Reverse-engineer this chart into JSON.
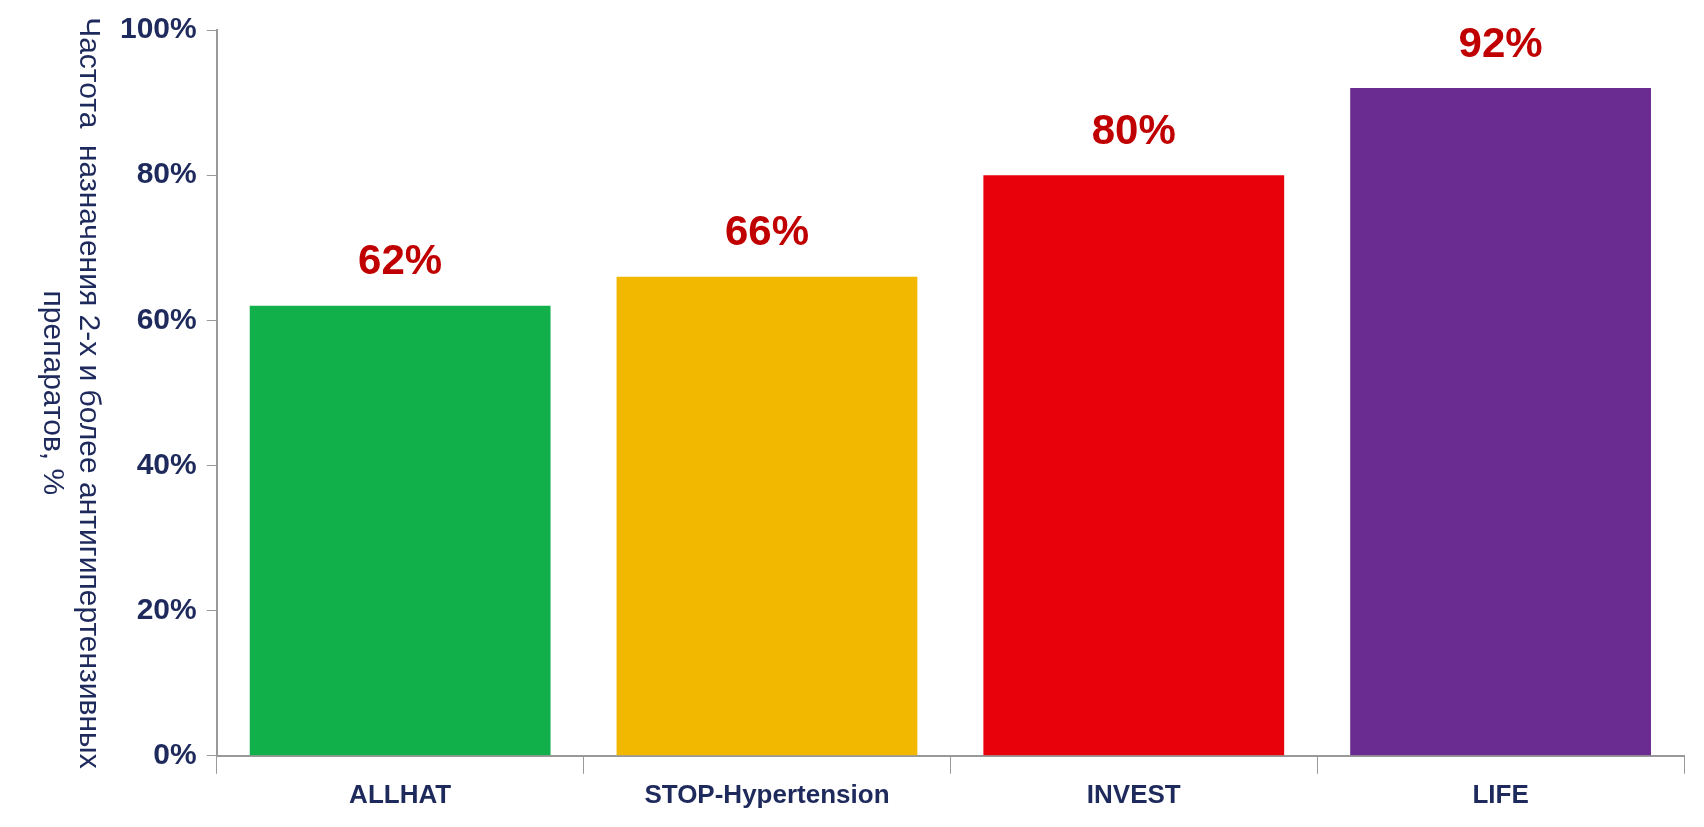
{
  "chart_data": {
    "type": "bar",
    "ylabel": "Частота  назначения 2-х и более антигипертензивных препаратов, %",
    "categories": [
      "ALLHAT",
      "STOP-Hypertension",
      "INVEST",
      "LIFE"
    ],
    "values": [
      62,
      66,
      80,
      92
    ],
    "colors": [
      "#12b04a",
      "#f2b800",
      "#e8000a",
      "#6a2c91"
    ],
    "value_labels": [
      "62%",
      "66%",
      "80%",
      "92%"
    ],
    "ylim": [
      0,
      100
    ],
    "yticks": [
      {
        "value": 0,
        "label": "0%"
      },
      {
        "value": 20,
        "label": "20%"
      },
      {
        "value": 40,
        "label": "40%"
      },
      {
        "value": 60,
        "label": "60%"
      },
      {
        "value": 80,
        "label": "80%"
      },
      {
        "value": 100,
        "label": "100%"
      }
    ],
    "grid": false,
    "legend": false
  }
}
